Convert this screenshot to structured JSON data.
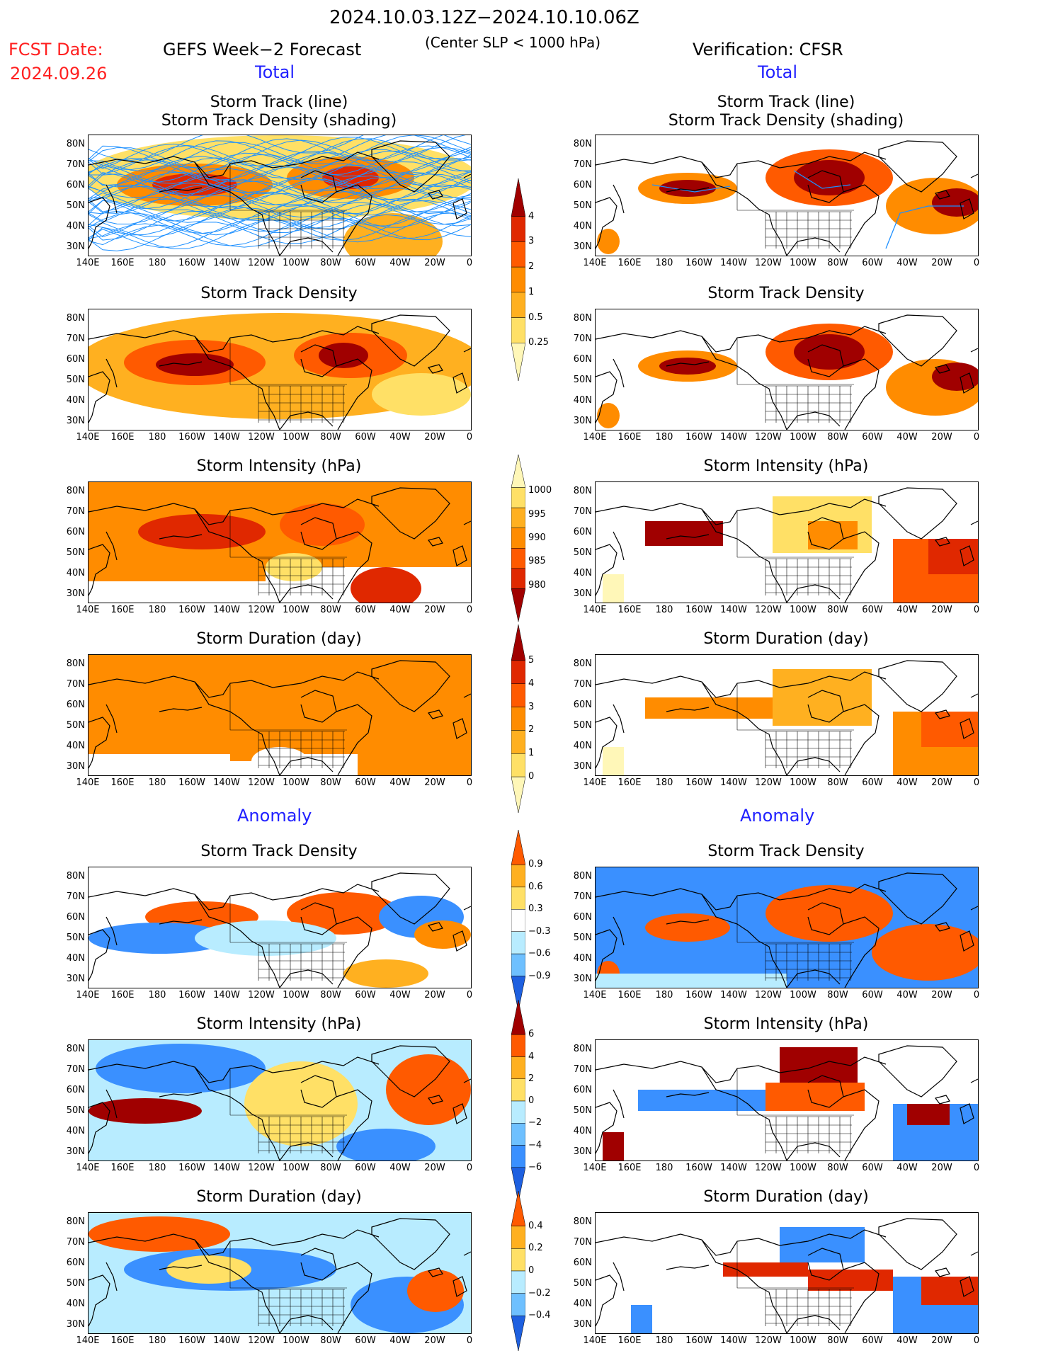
{
  "header": {
    "period": "2024.10.03.12Z−2024.10.10.06Z",
    "subtitle": "(Center SLP < 1000 hPa)",
    "fcst_label": "FCST Date:",
    "fcst_date": "2024.09.26",
    "left_title": "GEFS Week−2 Forecast",
    "right_title": "Verification: CFSR",
    "total_label": "Total",
    "anomaly_label": "Anomaly"
  },
  "panel_titles": {
    "track_line_1": "Storm Track (line)",
    "track_line_2": "Storm Track Density (shading)",
    "density": "Storm Track Density",
    "intensity": "Storm Intensity (hPa)",
    "duration": "Storm Duration (day)"
  },
  "axes": {
    "lat_labels": [
      "80N",
      "70N",
      "60N",
      "50N",
      "40N",
      "30N"
    ],
    "lon_labels": [
      "140E",
      "160E",
      "180",
      "160W",
      "140W",
      "120W",
      "100W",
      "80W",
      "60W",
      "40W",
      "20W",
      "0"
    ]
  },
  "colorbars": {
    "density_total": [
      "4",
      "3",
      "2",
      "1",
      "0.5",
      "0.25"
    ],
    "intensity_total": [
      "1000",
      "995",
      "990",
      "985",
      "980"
    ],
    "duration_total": [
      "5",
      "4",
      "3",
      "2",
      "1",
      "0"
    ],
    "density_anom": [
      "0.9",
      "0.6",
      "0.3",
      "−0.3",
      "−0.6",
      "−0.9"
    ],
    "intensity_anom": [
      "6",
      "4",
      "2",
      "0",
      "−2",
      "−4",
      "−6"
    ],
    "duration_anom": [
      "0.4",
      "0.2",
      "0",
      "−0.2",
      "−0.4"
    ]
  },
  "colors": {
    "warm": [
      "#fff7b8",
      "#ffe066",
      "#ffb020",
      "#ff8c00",
      "#ff5a00",
      "#e02800",
      "#a00000"
    ],
    "cool": [
      "#b8ecff",
      "#6ec0ff",
      "#3a90ff",
      "#1e60e0"
    ],
    "track_blue": "#1e90ff"
  }
}
